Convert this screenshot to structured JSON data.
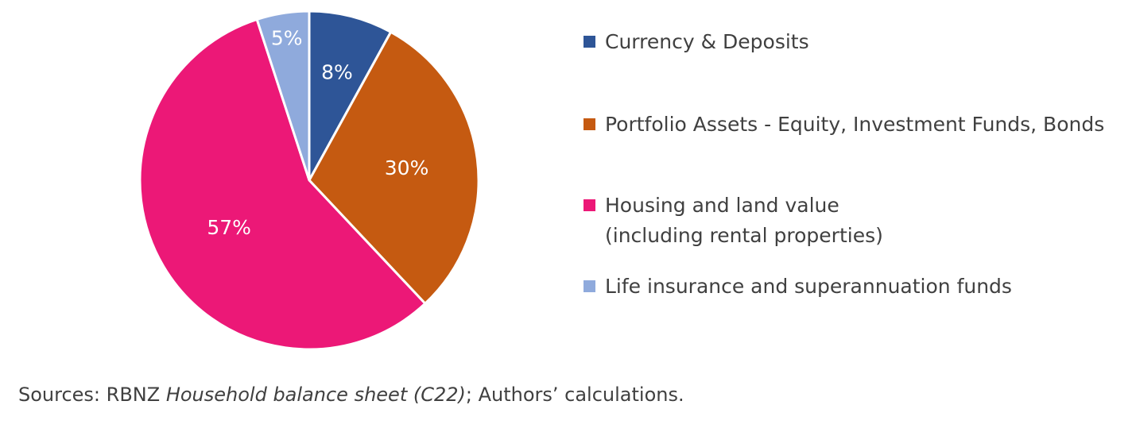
{
  "chart_data": {
    "type": "pie",
    "categories": [
      "Currency & Deposits",
      "Portfolio Assets - Equity, Investment Funds, Bonds",
      "Housing and land value (including rental properties)",
      "Life insurance and superannuation funds"
    ],
    "values": [
      8,
      30,
      57,
      5
    ],
    "data_labels": [
      "8%",
      "30%",
      "57%",
      "5%"
    ],
    "colors": [
      "#2E5597",
      "#C55A11",
      "#EC1877",
      "#8FAADC"
    ],
    "start_angle": 0,
    "direction": "clockwise",
    "legend_position": "right"
  },
  "legend": {
    "items": [
      {
        "lines": [
          "Currency & Deposits"
        ],
        "color": "#2E5597"
      },
      {
        "lines": [
          "Portfolio Assets - Equity, Investment Funds, Bonds"
        ],
        "color": "#C55A11"
      },
      {
        "lines": [
          "Housing and land value",
          "(including rental properties)"
        ],
        "color": "#EC1877"
      },
      {
        "lines": [
          "Life insurance and superannuation funds"
        ],
        "color": "#8FAADC"
      }
    ]
  },
  "source": {
    "prefix": "Sources: RBNZ ",
    "italic": "Household balance sheet (C22)",
    "suffix": "; Authors’ calculations."
  }
}
